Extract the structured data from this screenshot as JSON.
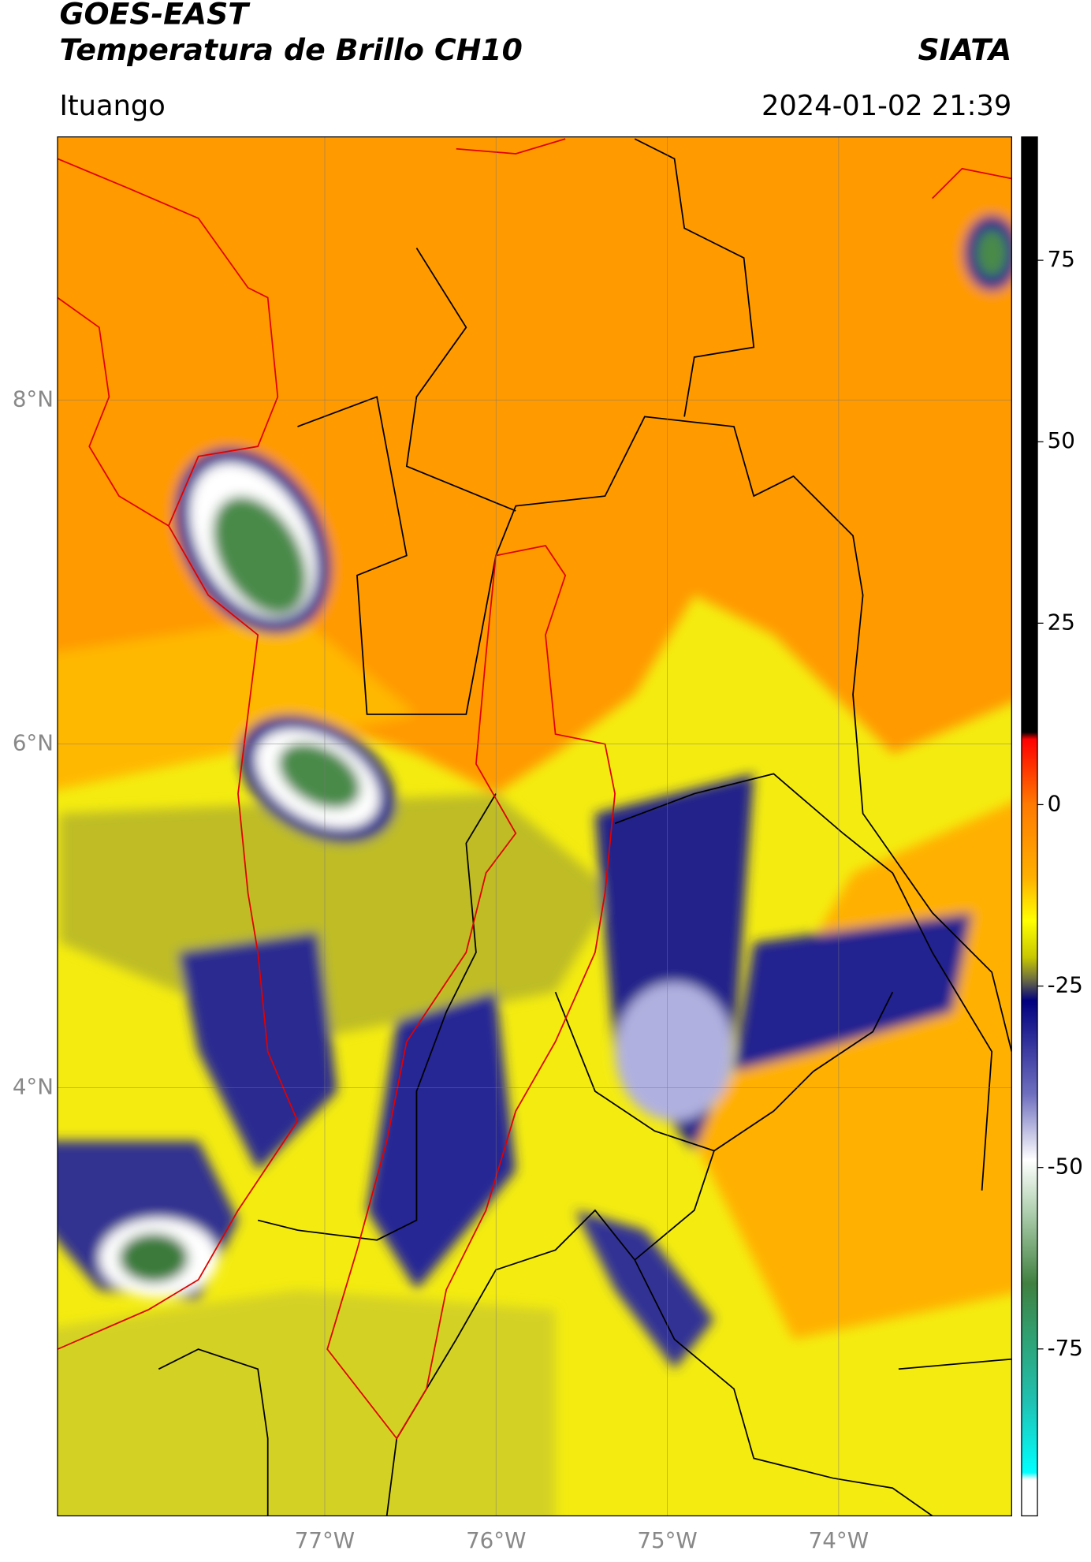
{
  "header": {
    "satellite": "GOES-EAST",
    "product": "Temperatura de Brillo CH10",
    "source": "SIATA",
    "location": "Ituango",
    "datetime": "2024-01-02 21:39"
  },
  "map": {
    "xlim": [
      -78.56,
      -72.99
    ],
    "ylim": [
      1.51,
      9.53
    ],
    "xticks": [
      {
        "value": -77,
        "label": "77°W"
      },
      {
        "value": -76,
        "label": "76°W"
      },
      {
        "value": -75,
        "label": "75°W"
      },
      {
        "value": -74,
        "label": "74°W"
      }
    ],
    "yticks": [
      {
        "value": 8,
        "label": "8°N"
      },
      {
        "value": 6,
        "label": "6°N"
      },
      {
        "value": 4,
        "label": "4°N"
      }
    ],
    "grid": true
  },
  "colorbar": {
    "lim": [
      -98,
      92
    ],
    "ticks": [
      75,
      50,
      25,
      0,
      -25,
      -50,
      -75
    ],
    "colors": [
      {
        "value": 92,
        "color": "#000000"
      },
      {
        "value": 10,
        "color": "#000000"
      },
      {
        "value": 9,
        "color": "#ff0000"
      },
      {
        "value": 0,
        "color": "#ff7a00"
      },
      {
        "value": -10,
        "color": "#ffb000"
      },
      {
        "value": -16,
        "color": "#ffff00"
      },
      {
        "value": -21,
        "color": "#c8c800"
      },
      {
        "value": -24,
        "color": "#707040"
      },
      {
        "value": -27,
        "color": "#000080"
      },
      {
        "value": -40,
        "color": "#7070c0"
      },
      {
        "value": -49,
        "color": "#ffffff"
      },
      {
        "value": -56,
        "color": "#b0d0b0"
      },
      {
        "value": -66,
        "color": "#408040"
      },
      {
        "value": -73,
        "color": "#30a070"
      },
      {
        "value": -82,
        "color": "#20c0b0"
      },
      {
        "value": -92,
        "color": "#00ffff"
      },
      {
        "value": -93,
        "color": "#ffffff"
      },
      {
        "value": -98,
        "color": "#ffffff"
      }
    ]
  }
}
